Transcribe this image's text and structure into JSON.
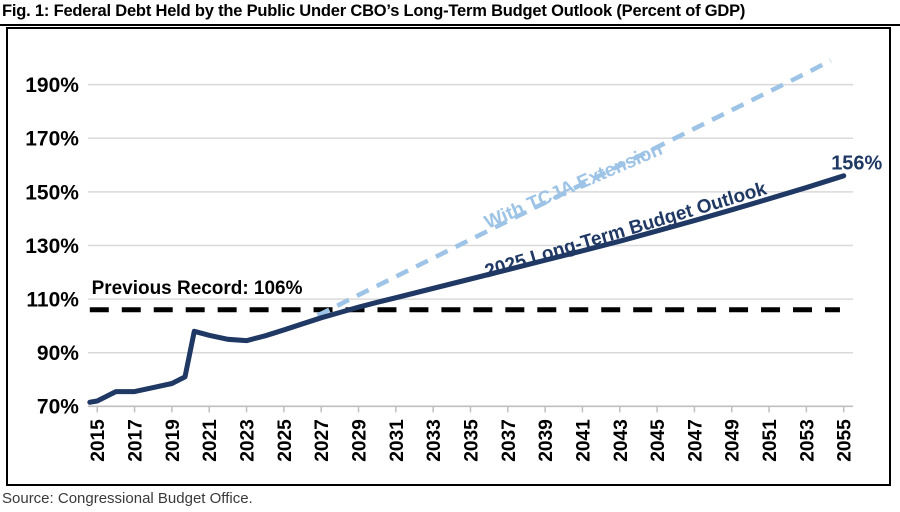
{
  "title": "Fig. 1: Federal Debt Held by the Public Under CBO’s Long-Term Budget Outlook (Percent of GDP)",
  "source": "Source: Congressional Budget Office.",
  "colors": {
    "navy": "#1F3864",
    "light_blue": "#9DC3E6",
    "record": "#000000",
    "grid": "#D9D9D9",
    "axis": "#BFBFBF",
    "text": "#000000"
  },
  "chart_data": {
    "type": "line",
    "title": "Fig. 1: Federal Debt Held by the Public Under CBO’s Long-Term Budget Outlook (Percent of GDP)",
    "xlabel": "",
    "ylabel": "Percent of GDP",
    "xlim": [
      2014.5,
      2055.5
    ],
    "ylim": [
      70,
      210
    ],
    "grid": true,
    "legend_position": "inline-annotations",
    "yticks": [
      70,
      90,
      110,
      130,
      150,
      170,
      190
    ],
    "ytick_suffix": "%",
    "xticks": [
      2015,
      2017,
      2019,
      2021,
      2023,
      2025,
      2027,
      2029,
      2031,
      2033,
      2035,
      2037,
      2039,
      2041,
      2043,
      2045,
      2047,
      2049,
      2051,
      2053,
      2055
    ],
    "series": [
      {
        "name": "Previous Record (106%)",
        "color_key": "record",
        "width": 5,
        "dasharray": "19 13",
        "points": [
          [
            2014.6,
            106
          ],
          [
            2054.8,
            106
          ]
        ]
      },
      {
        "name": "With TCJA Extension",
        "color_key": "light_blue",
        "width": 4.5,
        "dasharray": "13 9",
        "points": [
          [
            2026.8,
            104
          ],
          [
            2027,
            104.5
          ],
          [
            2029,
            111.5
          ],
          [
            2031,
            118.4
          ],
          [
            2033,
            125.3
          ],
          [
            2035,
            132.2
          ],
          [
            2037,
            139.1
          ],
          [
            2039,
            146
          ],
          [
            2041,
            152.9
          ],
          [
            2043,
            159.8
          ],
          [
            2045,
            166.7
          ],
          [
            2047,
            173.6
          ],
          [
            2049,
            180.5
          ],
          [
            2051,
            187.4
          ],
          [
            2053,
            194.3
          ],
          [
            2054.3,
            199
          ]
        ]
      },
      {
        "name": "2025 Long-Term Budget Outlook",
        "color_key": "navy",
        "width": 5,
        "dasharray": null,
        "points": [
          [
            2014.6,
            71.5
          ],
          [
            2015,
            72
          ],
          [
            2016,
            75.5
          ],
          [
            2017,
            75.5
          ],
          [
            2018,
            77
          ],
          [
            2019,
            78.5
          ],
          [
            2019.7,
            81
          ],
          [
            2020.2,
            98
          ],
          [
            2021,
            96.5
          ],
          [
            2022,
            95
          ],
          [
            2023,
            94.5
          ],
          [
            2024,
            96.3
          ],
          [
            2025,
            98.5
          ],
          [
            2026,
            100.8
          ],
          [
            2027,
            103
          ],
          [
            2028,
            105
          ],
          [
            2029,
            107
          ],
          [
            2030,
            108.8
          ],
          [
            2031,
            110.5
          ],
          [
            2033,
            114
          ],
          [
            2035,
            117.5
          ],
          [
            2037,
            121
          ],
          [
            2039,
            124.5
          ],
          [
            2041,
            128
          ],
          [
            2043,
            131.6
          ],
          [
            2045,
            135.4
          ],
          [
            2047,
            139.3
          ],
          [
            2049,
            143.3
          ],
          [
            2051,
            147.4
          ],
          [
            2053,
            151.6
          ],
          [
            2055,
            156
          ]
        ]
      }
    ],
    "annotations": [
      {
        "text": "Previous Record: 106%",
        "x": 2014.7,
        "y": 114.5,
        "color_key": "record",
        "angle": 0,
        "anchor": "start",
        "size": 19
      },
      {
        "text": "With TCJA Extension",
        "x": 2040.5,
        "y": 152.5,
        "color_key": "light_blue",
        "angle": -23,
        "anchor": "middle",
        "size": 19
      },
      {
        "text": "2025 Long-Term Budget Outlook",
        "x": 2043.3,
        "y": 136,
        "color_key": "navy",
        "angle": -16.5,
        "anchor": "middle",
        "size": 19
      },
      {
        "text": "156%",
        "x": 2055.7,
        "y": 161,
        "color_key": "navy",
        "angle": 0,
        "anchor": "middle",
        "size": 20
      }
    ]
  }
}
